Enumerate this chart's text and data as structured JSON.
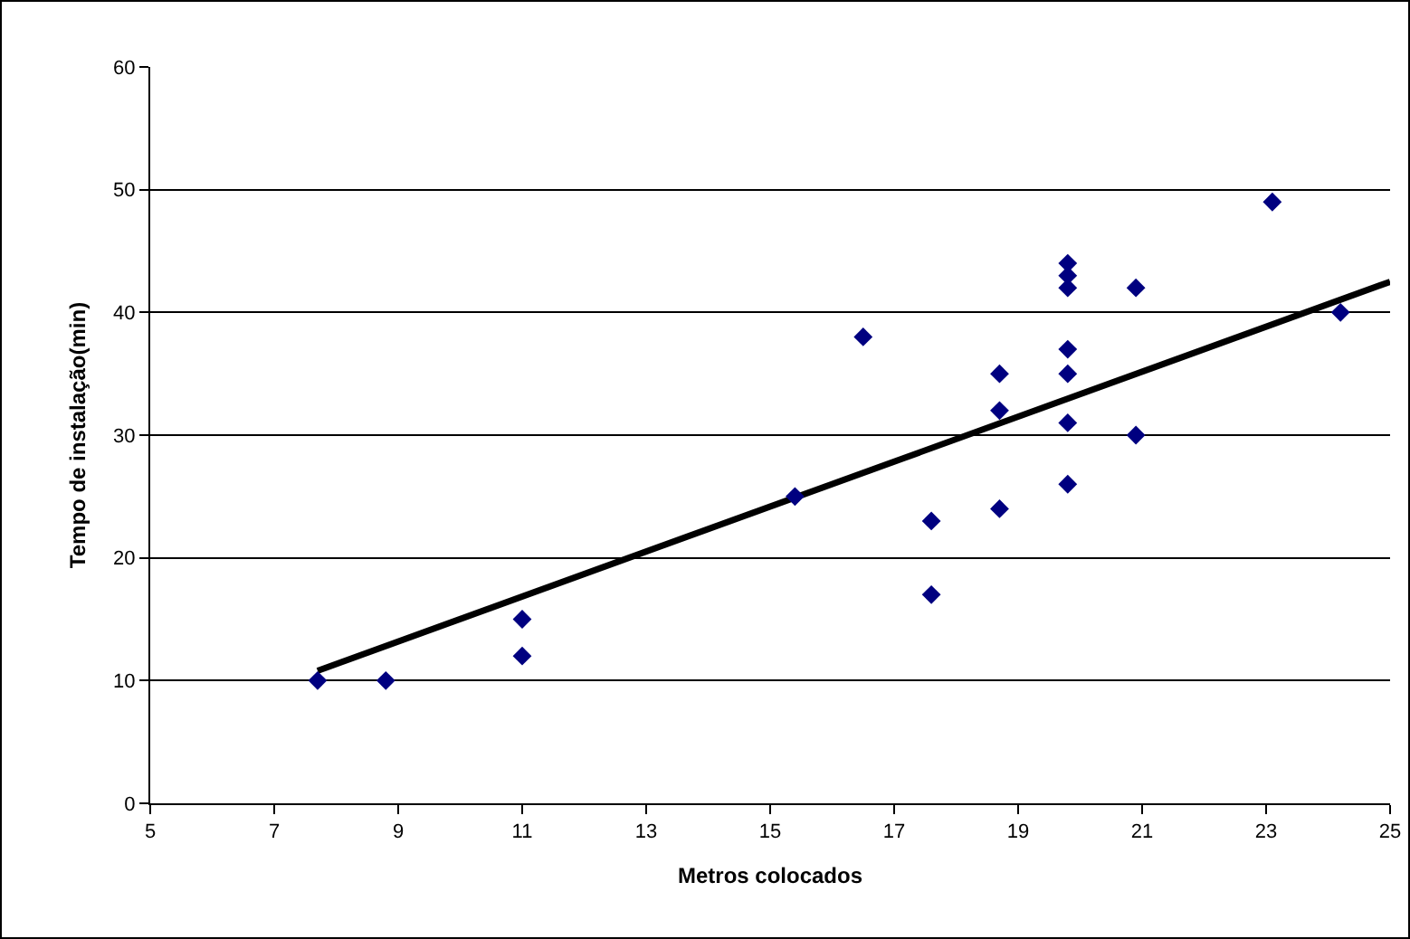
{
  "chart_data": {
    "type": "scatter",
    "xlabel": "Metros colocados",
    "ylabel": "Tempo de instalação(min)",
    "xlim": [
      5,
      25
    ],
    "xticks": [
      5,
      7,
      9,
      11,
      13,
      15,
      17,
      19,
      21,
      23,
      25
    ],
    "ylim": [
      0,
      60
    ],
    "yticks": [
      0,
      10,
      20,
      30,
      40,
      50,
      60
    ],
    "grid": "y",
    "marker": "diamond",
    "series": [
      {
        "color": "#000080",
        "x": [
          7.7,
          8.8,
          11,
          11,
          15.4,
          16.5,
          17.6,
          17.6,
          18.7,
          18.7,
          18.7,
          19.8,
          19.8,
          19.8,
          19.8,
          19.8,
          19.8,
          19.8,
          20.9,
          20.9,
          23.1,
          24.2
        ],
        "values": [
          10,
          10,
          15,
          12,
          25,
          38,
          23,
          17,
          35,
          32,
          24,
          44,
          43,
          42,
          37,
          35,
          31,
          26,
          42,
          30,
          49,
          40
        ]
      },
      {
        "type": "line",
        "marker": "none",
        "color": "#000000",
        "x": [
          7.7,
          25
        ],
        "values": [
          10.8,
          42.5
        ]
      }
    ]
  }
}
